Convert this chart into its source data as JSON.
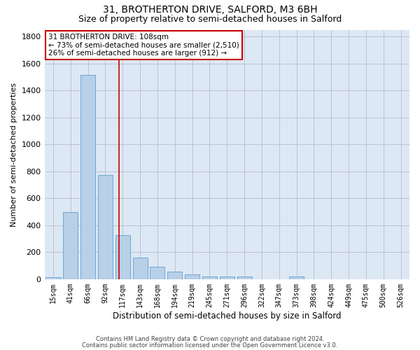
{
  "title1": "31, BROTHERTON DRIVE, SALFORD, M3 6BH",
  "title2": "Size of property relative to semi-detached houses in Salford",
  "xlabel": "Distribution of semi-detached houses by size in Salford",
  "ylabel": "Number of semi-detached properties",
  "footer1": "Contains HM Land Registry data © Crown copyright and database right 2024.",
  "footer2": "Contains public sector information licensed under the Open Government Licence v3.0.",
  "annotation_line1": "31 BROTHERTON DRIVE: 108sqm",
  "annotation_line2": "← 73% of semi-detached houses are smaller (2,510)",
  "annotation_line3": "26% of semi-detached houses are larger (912) →",
  "bar_labels": [
    "15sqm",
    "41sqm",
    "66sqm",
    "92sqm",
    "117sqm",
    "143sqm",
    "168sqm",
    "194sqm",
    "219sqm",
    "245sqm",
    "271sqm",
    "296sqm",
    "322sqm",
    "347sqm",
    "373sqm",
    "398sqm",
    "424sqm",
    "449sqm",
    "475sqm",
    "500sqm",
    "526sqm"
  ],
  "bar_values": [
    15,
    495,
    1515,
    775,
    325,
    160,
    93,
    55,
    35,
    22,
    18,
    18,
    0,
    0,
    18,
    0,
    0,
    0,
    0,
    0,
    0
  ],
  "bar_color": "#b8d0e8",
  "bar_edgecolor": "#6fa8d0",
  "redline_x": 3.77,
  "ylim": [
    0,
    1850
  ],
  "yticks": [
    0,
    200,
    400,
    600,
    800,
    1000,
    1200,
    1400,
    1600,
    1800
  ],
  "background_color": "#dde8f5",
  "grid_color": "#bbbbcc",
  "annotation_box_color": "#ffffff",
  "annotation_box_edgecolor": "#cc0000",
  "redline_color": "#cc0000",
  "title1_fontsize": 10,
  "title2_fontsize": 9,
  "ylabel_fontsize": 8,
  "xlabel_fontsize": 8.5,
  "xtick_fontsize": 7,
  "ytick_fontsize": 8,
  "annotation_fontsize": 7.5,
  "footer_fontsize": 6
}
